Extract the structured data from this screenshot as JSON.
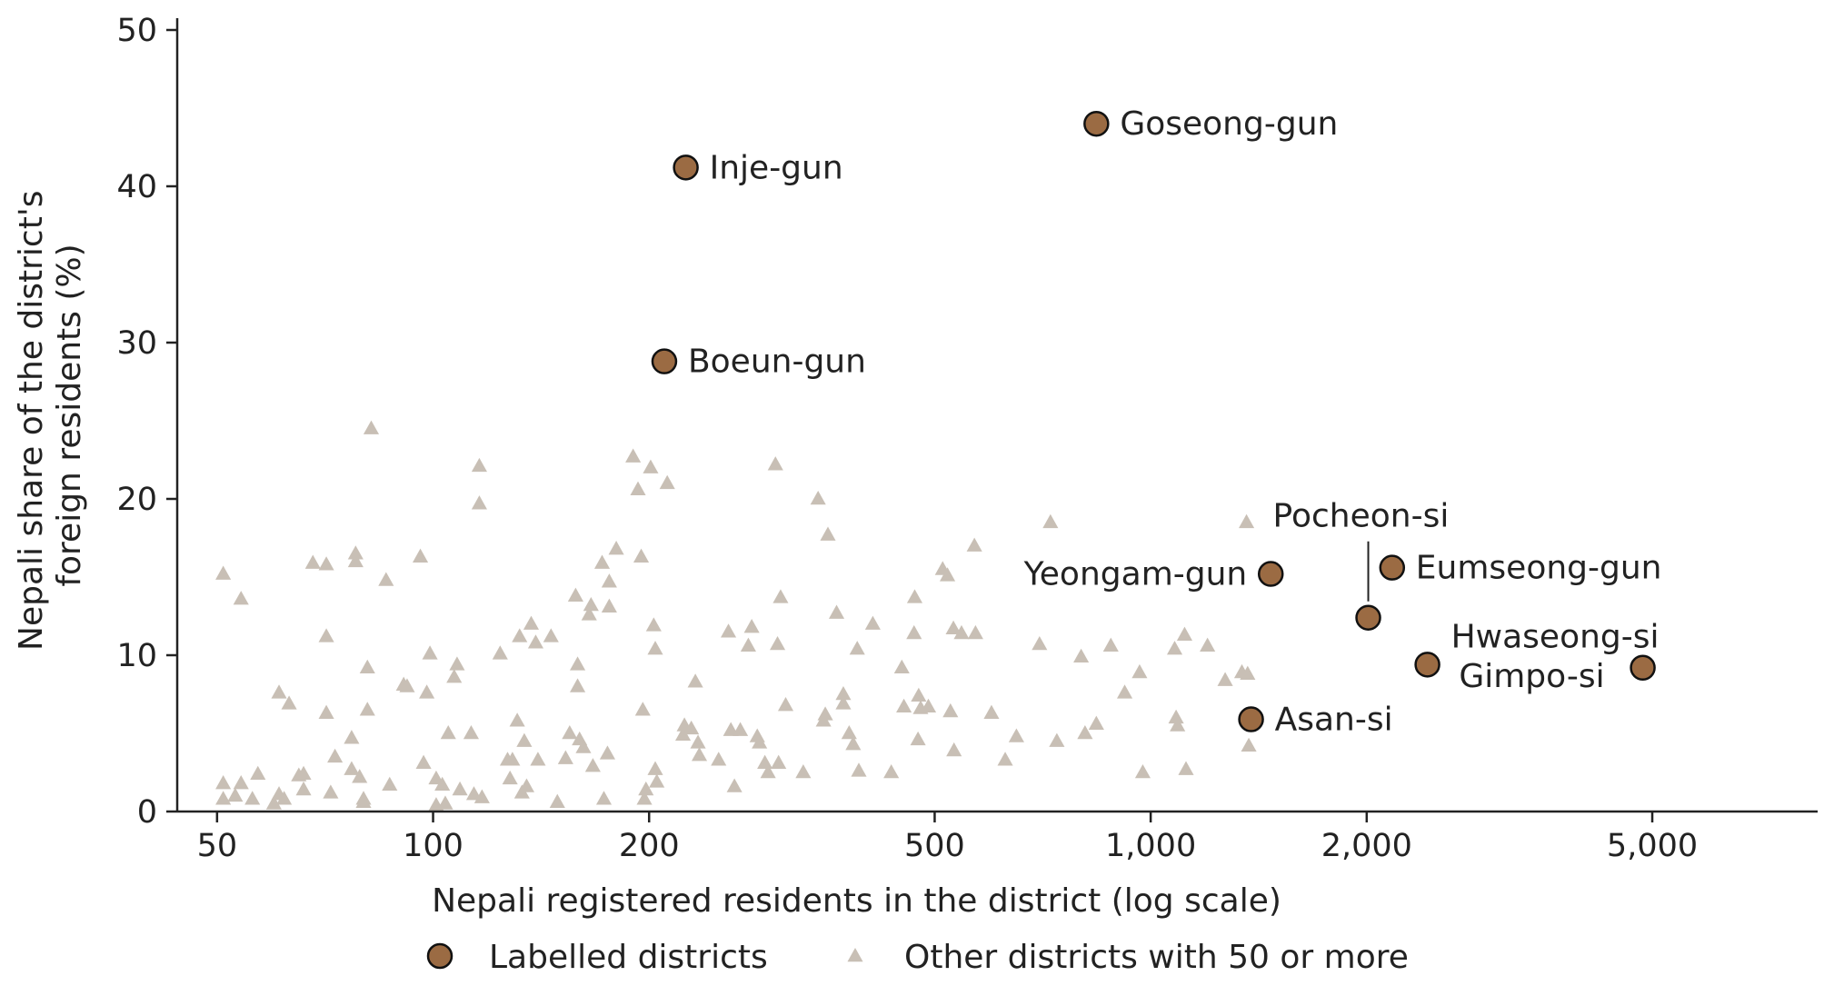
{
  "chart_data": {
    "type": "scatter",
    "title": "",
    "xlabel": "Nepali registered residents in the district (log scale)",
    "ylabel": [
      "Nepali share of the district's",
      "foreign residents (%)"
    ],
    "x_scale": "log",
    "xlim": [
      44,
      8500
    ],
    "ylim": [
      0,
      50
    ],
    "x_ticks": [
      50,
      100,
      200,
      500,
      1000,
      2000,
      5000
    ],
    "x_tick_labels": [
      "50",
      "100",
      "200",
      "500",
      "1,000",
      "2,000",
      "5,000"
    ],
    "y_ticks": [
      0,
      10,
      20,
      30,
      40,
      50
    ],
    "y_tick_labels": [
      "0",
      "10",
      "20",
      "30",
      "40",
      "50"
    ],
    "grid": false,
    "legend_position": "bottom",
    "colors": {
      "labelled": "#9b6b43",
      "other": "#c8bfb5",
      "axis": "#222222"
    },
    "series": [
      {
        "name": "Labelled districts",
        "marker": "circle",
        "points": [
          {
            "x": 840,
            "y": 44.0,
            "label": "Goseong-gun",
            "anchor": "right"
          },
          {
            "x": 225,
            "y": 41.2,
            "label": "Inje-gun",
            "anchor": "right"
          },
          {
            "x": 210,
            "y": 28.8,
            "label": "Boeun-gun",
            "anchor": "right"
          },
          {
            "x": 1470,
            "y": 15.2,
            "label": "Yeongam-gun",
            "anchor": "left"
          },
          {
            "x": 2010,
            "y": 12.4,
            "label": "Pocheon-si",
            "anchor": "leader"
          },
          {
            "x": 2170,
            "y": 15.6,
            "label": "Eumseong-gun",
            "anchor": "right"
          },
          {
            "x": 2430,
            "y": 9.4,
            "label": "Hwaseong-si",
            "anchor": "above-right"
          },
          {
            "x": 4850,
            "y": 9.2,
            "label": "Gimpo-si",
            "anchor": "left-below"
          },
          {
            "x": 1380,
            "y": 5.9,
            "label": "Asan-si",
            "anchor": "right"
          }
        ]
      },
      {
        "name": "Other districts with 50 or more",
        "marker": "triangle",
        "points": [
          [
            51,
            15.2
          ],
          [
            51,
            1.8
          ],
          [
            51,
            0.8
          ],
          [
            53,
            1.0
          ],
          [
            54,
            13.6
          ],
          [
            54,
            1.8
          ],
          [
            56,
            0.8
          ],
          [
            57,
            2.4
          ],
          [
            60,
            0.5
          ],
          [
            61,
            1.1
          ],
          [
            61,
            7.6
          ],
          [
            62,
            0.8
          ],
          [
            63,
            6.9
          ],
          [
            65,
            2.3
          ],
          [
            66,
            2.4
          ],
          [
            66,
            1.4
          ],
          [
            68,
            15.9
          ],
          [
            71,
            15.8
          ],
          [
            71,
            11.2
          ],
          [
            71,
            6.3
          ],
          [
            72,
            1.2
          ],
          [
            73,
            3.5
          ],
          [
            77,
            4.7
          ],
          [
            77,
            2.7
          ],
          [
            78,
            16.5
          ],
          [
            78,
            16.0
          ],
          [
            79,
            2.2
          ],
          [
            80,
            0.6
          ],
          [
            80,
            0.8
          ],
          [
            81,
            6.5
          ],
          [
            81,
            9.2
          ],
          [
            82,
            24.5
          ],
          [
            86,
            14.8
          ],
          [
            87,
            1.7
          ],
          [
            91,
            8.1
          ],
          [
            92,
            8.0
          ],
          [
            96,
            16.3
          ],
          [
            97,
            3.1
          ],
          [
            98,
            7.6
          ],
          [
            99,
            10.1
          ],
          [
            101,
            2.1
          ],
          [
            101,
            0.4
          ],
          [
            103,
            1.7
          ],
          [
            104,
            0.5
          ],
          [
            105,
            5.0
          ],
          [
            107,
            8.6
          ],
          [
            108,
            9.4
          ],
          [
            109,
            1.4
          ],
          [
            113,
            5.0
          ],
          [
            114,
            1.1
          ],
          [
            116,
            22.1
          ],
          [
            116,
            19.7
          ],
          [
            117,
            0.9
          ],
          [
            124,
            10.1
          ],
          [
            127,
            3.3
          ],
          [
            128,
            2.1
          ],
          [
            129,
            3.3
          ],
          [
            131,
            5.8
          ],
          [
            132,
            11.2
          ],
          [
            133,
            1.2
          ],
          [
            134,
            4.5
          ],
          [
            135,
            1.6
          ],
          [
            137,
            12.0
          ],
          [
            139,
            10.8
          ],
          [
            140,
            3.3
          ],
          [
            146,
            11.2
          ],
          [
            149,
            0.6
          ],
          [
            153,
            3.4
          ],
          [
            155,
            5.0
          ],
          [
            158,
            13.8
          ],
          [
            159,
            9.4
          ],
          [
            159,
            8.0
          ],
          [
            160,
            4.6
          ],
          [
            162,
            4.1
          ],
          [
            165,
            12.6
          ],
          [
            166,
            13.2
          ],
          [
            167,
            2.9
          ],
          [
            172,
            15.9
          ],
          [
            173,
            0.8
          ],
          [
            175,
            3.7
          ],
          [
            176,
            14.7
          ],
          [
            176,
            13.1
          ],
          [
            180,
            16.8
          ],
          [
            190,
            22.7
          ],
          [
            193,
            20.6
          ],
          [
            195,
            16.3
          ],
          [
            196,
            6.5
          ],
          [
            197,
            0.8
          ],
          [
            198,
            1.4
          ],
          [
            201,
            22.0
          ],
          [
            203,
            11.9
          ],
          [
            204,
            10.4
          ],
          [
            204,
            2.7
          ],
          [
            205,
            1.9
          ],
          [
            212,
            21.0
          ],
          [
            223,
            4.9
          ],
          [
            224,
            5.5
          ],
          [
            229,
            5.3
          ],
          [
            232,
            8.3
          ],
          [
            234,
            4.4
          ],
          [
            235,
            3.6
          ],
          [
            250,
            3.3
          ],
          [
            258,
            11.5
          ],
          [
            260,
            5.2
          ],
          [
            263,
            1.6
          ],
          [
            268,
            5.2
          ],
          [
            275,
            10.6
          ],
          [
            278,
            11.8
          ],
          [
            283,
            4.8
          ],
          [
            285,
            4.4
          ],
          [
            290,
            3.1
          ],
          [
            293,
            2.5
          ],
          [
            300,
            22.2
          ],
          [
            302,
            10.7
          ],
          [
            303,
            3.1
          ],
          [
            305,
            13.7
          ],
          [
            310,
            6.8
          ],
          [
            328,
            2.5
          ],
          [
            344,
            20.0
          ],
          [
            350,
            5.8
          ],
          [
            352,
            6.2
          ],
          [
            355,
            17.7
          ],
          [
            365,
            12.7
          ],
          [
            373,
            7.5
          ],
          [
            373,
            6.9
          ],
          [
            380,
            5.0
          ],
          [
            385,
            4.3
          ],
          [
            390,
            10.4
          ],
          [
            392,
            2.6
          ],
          [
            410,
            12.0
          ],
          [
            435,
            2.5
          ],
          [
            450,
            9.2
          ],
          [
            453,
            6.7
          ],
          [
            468,
            11.4
          ],
          [
            469,
            13.7
          ],
          [
            474,
            4.6
          ],
          [
            475,
            7.4
          ],
          [
            478,
            6.6
          ],
          [
            490,
            6.7
          ],
          [
            513,
            15.5
          ],
          [
            521,
            15.1
          ],
          [
            526,
            6.4
          ],
          [
            531,
            11.7
          ],
          [
            532,
            3.9
          ],
          [
            545,
            11.4
          ],
          [
            568,
            17.0
          ],
          [
            570,
            11.4
          ],
          [
            600,
            6.3
          ],
          [
            627,
            3.3
          ],
          [
            650,
            4.8
          ],
          [
            700,
            10.7
          ],
          [
            725,
            18.5
          ],
          [
            740,
            4.5
          ],
          [
            800,
            9.9
          ],
          [
            810,
            5.0
          ],
          [
            840,
            5.6
          ],
          [
            880,
            10.6
          ],
          [
            920,
            7.6
          ],
          [
            965,
            8.9
          ],
          [
            975,
            2.5
          ],
          [
            1080,
            10.4
          ],
          [
            1085,
            6.0
          ],
          [
            1090,
            5.5
          ],
          [
            1115,
            11.3
          ],
          [
            1120,
            2.7
          ],
          [
            1200,
            10.6
          ],
          [
            1270,
            8.4
          ],
          [
            1340,
            8.9
          ],
          [
            1360,
            18.5
          ],
          [
            1365,
            8.8
          ],
          [
            1370,
            4.2
          ]
        ]
      }
    ]
  }
}
